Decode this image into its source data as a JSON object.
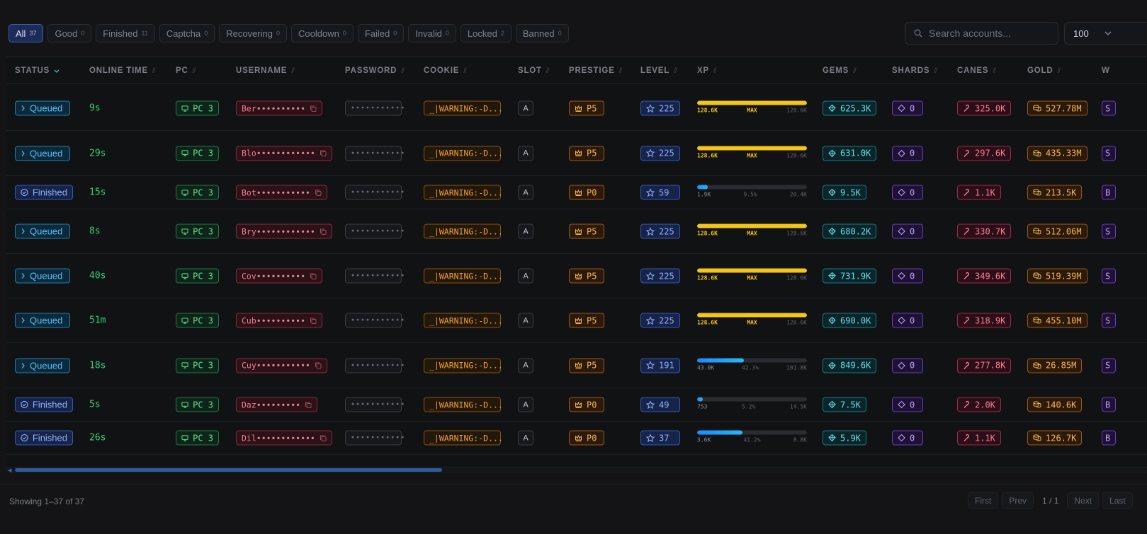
{
  "filters": [
    {
      "label": "All",
      "count": "37",
      "active": true
    },
    {
      "label": "Good",
      "count": "0"
    },
    {
      "label": "Finished",
      "count": "11"
    },
    {
      "label": "Captcha",
      "count": "0"
    },
    {
      "label": "Recovering",
      "count": "0"
    },
    {
      "label": "Cooldown",
      "count": "0"
    },
    {
      "label": "Failed",
      "count": "0"
    },
    {
      "label": "Invalid",
      "count": "0"
    },
    {
      "label": "Locked",
      "count": "2"
    },
    {
      "label": "Banned",
      "count": "0"
    }
  ],
  "search": {
    "placeholder": "Search accounts..."
  },
  "page_size": {
    "value": "100"
  },
  "columns": {
    "status": "STATUS",
    "online": "ONLINE TIME",
    "pc": "PC",
    "username": "USERNAME",
    "password": "PASSWORD",
    "cookie": "COOKIE",
    "slot": "SLOT",
    "prestige": "PRESTIGE",
    "level": "LEVEL",
    "xp": "XP",
    "gems": "GEMS",
    "shards": "SHARDS",
    "canes": "CANES",
    "gold": "GOLD",
    "next": "W"
  },
  "xp_max_label": "MAX",
  "rows": [
    {
      "status": "Queued",
      "online": "9s",
      "pc": "PC 3",
      "username": "Ber••••••••••",
      "password": "•••••••••••",
      "cookie": "_|WARNING:-D...",
      "slot": "A",
      "prestige": "P5",
      "level": "225",
      "xp_cur": "128.6K",
      "xp_mid": "MAX",
      "xp_max": "128.6K",
      "xp_fill": 1.0,
      "gems": "625.3K",
      "shards": "0",
      "canes": "325.0K",
      "gold": "527.78M",
      "next": "S"
    },
    {
      "status": "Queued",
      "online": "29s",
      "pc": "PC 3",
      "username": "Blo••••••••••••",
      "password": "•••••••••••",
      "cookie": "_|WARNING:-D...",
      "slot": "A",
      "prestige": "P5",
      "level": "225",
      "xp_cur": "128.6K",
      "xp_mid": "MAX",
      "xp_max": "128.6K",
      "xp_fill": 1.0,
      "gems": "631.0K",
      "shards": "0",
      "canes": "297.6K",
      "gold": "435.33M",
      "next": "S"
    },
    {
      "status": "Finished",
      "online": "15s",
      "pc": "PC 3",
      "username": "Bot•••••••••••",
      "password": "•••••••••••",
      "cookie": "_|WARNING:-D...",
      "slot": "A",
      "prestige": "P0",
      "level": "59",
      "xp_cur": "1.9K",
      "xp_mid": "9.5%",
      "xp_max": "20.4K",
      "xp_fill": 0.095,
      "gems": "9.5K",
      "shards": "0",
      "canes": "1.1K",
      "gold": "213.5K",
      "next": "B"
    },
    {
      "status": "Queued",
      "online": "8s",
      "pc": "PC 3",
      "username": "Bry••••••••••••",
      "password": "•••••••••••",
      "cookie": "_|WARNING:-D...",
      "slot": "A",
      "prestige": "P5",
      "level": "225",
      "xp_cur": "128.6K",
      "xp_mid": "MAX",
      "xp_max": "128.6K",
      "xp_fill": 1.0,
      "gems": "680.2K",
      "shards": "0",
      "canes": "330.7K",
      "gold": "512.06M",
      "next": "S"
    },
    {
      "status": "Queued",
      "online": "40s",
      "pc": "PC 3",
      "username": "Cov••••••••••",
      "password": "•••••••••••",
      "cookie": "_|WARNING:-D...",
      "slot": "A",
      "prestige": "P5",
      "level": "225",
      "xp_cur": "128.6K",
      "xp_mid": "MAX",
      "xp_max": "128.6K",
      "xp_fill": 1.0,
      "gems": "731.9K",
      "shards": "0",
      "canes": "349.6K",
      "gold": "519.39M",
      "next": "S"
    },
    {
      "status": "Queued",
      "online": "51m",
      "pc": "PC 3",
      "username": "Cub••••••••••",
      "password": "•••••••••••",
      "cookie": "_|WARNING:-D...",
      "slot": "A",
      "prestige": "P5",
      "level": "225",
      "xp_cur": "128.6K",
      "xp_mid": "MAX",
      "xp_max": "128.6K",
      "xp_fill": 1.0,
      "gems": "690.0K",
      "shards": "0",
      "canes": "318.9K",
      "gold": "455.10M",
      "next": "S"
    },
    {
      "status": "Queued",
      "online": "18s",
      "pc": "PC 3",
      "username": "Cuy•••••••••••",
      "password": "•••••••••••",
      "cookie": "_|WARNING:-D...",
      "slot": "A",
      "prestige": "P5",
      "level": "191",
      "xp_cur": "43.0K",
      "xp_mid": "42.3%",
      "xp_max": "101.8K",
      "xp_fill": 0.423,
      "gems": "849.6K",
      "shards": "0",
      "canes": "277.8K",
      "gold": "26.85M",
      "next": "S"
    },
    {
      "status": "Finished",
      "online": "5s",
      "pc": "PC 3",
      "username": "Daz•••••••••",
      "password": "•••••••••••",
      "cookie": "_|WARNING:-D...",
      "slot": "A",
      "prestige": "P0",
      "level": "49",
      "xp_cur": "753",
      "xp_mid": "5.2%",
      "xp_max": "14.5K",
      "xp_fill": 0.052,
      "gems": "7.5K",
      "shards": "0",
      "canes": "2.0K",
      "gold": "140.6K",
      "next": "B"
    },
    {
      "status": "Finished",
      "online": "26s",
      "pc": "PC 3",
      "username": "Dil••••••••••••",
      "password": "•••••••••••",
      "cookie": "_|WARNING:-D...",
      "slot": "A",
      "prestige": "P0",
      "level": "37",
      "xp_cur": "3.6K",
      "xp_mid": "41.2%",
      "xp_max": "8.8K",
      "xp_fill": 0.412,
      "gems": "5.9K",
      "shards": "0",
      "canes": "1.1K",
      "gold": "126.7K",
      "next": "B"
    }
  ],
  "footer": {
    "showing": "Showing 1–37 of 37",
    "first": "First",
    "prev": "Prev",
    "page": "1 / 1",
    "next": "Next",
    "last": "Last"
  },
  "colors": {
    "accent": "#3a5db3",
    "queued": "#4cc4ff",
    "finished": "#8fb2ff",
    "online": "#34d17a",
    "xp_max": "#f5c518"
  },
  "icons": {
    "status_queued": "chevron-right-icon",
    "status_finished": "check-circle-icon",
    "pc": "monitor-icon",
    "copy": "copy-icon",
    "prestige": "crown-icon",
    "level": "star-icon",
    "gems": "gem-icon",
    "shards": "diamond-icon",
    "canes": "candy-cane-icon",
    "gold": "coins-icon",
    "search": "search-icon"
  }
}
